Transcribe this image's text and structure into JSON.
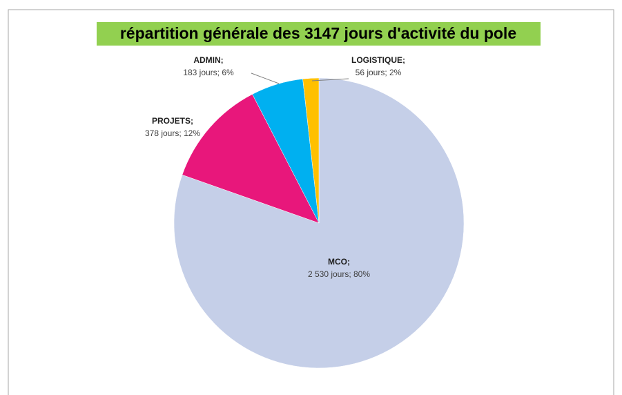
{
  "chart_data": {
    "type": "pie",
    "title": "répartition générale  des 3147 jours d'activité du pole",
    "categories": [
      "MCO;",
      "PROJETS;",
      "ADMIN;",
      "LOGISTIQUE;"
    ],
    "values": [
      2530,
      378,
      183,
      56
    ],
    "value_labels": [
      "2 530  jours; 80%",
      "378  jours; 12%",
      "183  jours; 6%",
      "56  jours; 2%"
    ],
    "colors": [
      "#c5cfe8",
      "#e8177b",
      "#00b0f0",
      "#ffc000"
    ],
    "title_background": "#92d050"
  }
}
